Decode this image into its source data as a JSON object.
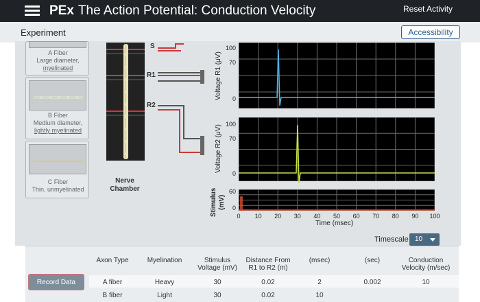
{
  "header": {
    "brand": "PEx",
    "title": "The Action Potential: Conduction Velocity",
    "reset_label": "Reset Activity"
  },
  "subbar": {
    "tab_label": "Experiment",
    "accessibility_label": "Accessibility"
  },
  "fibers": [
    {
      "title": "A Fiber",
      "line1": "Large diameter,",
      "line2": "myelinated"
    },
    {
      "title": "B Fiber",
      "line1": "Medium diameter,",
      "line2": "lightly myelinated"
    },
    {
      "title": "C Fiber",
      "line1": "Thin, unmyelinated",
      "line2": ""
    }
  ],
  "chamber": {
    "label_line1": "Nerve",
    "label_line2": "Chamber",
    "electrodes": [
      "S",
      "R1",
      "R2"
    ]
  },
  "oscilloscope": {
    "r1_label": "Voltage R1 (μV)",
    "r2_label": "Voltage R2 (μV)",
    "stim_label_line1": "Stimulus",
    "stim_label_line2": "(mV)",
    "r1_ticks": [
      "100",
      "70",
      "0"
    ],
    "r2_ticks": [
      "100",
      "70",
      "0"
    ],
    "stim_ticks": [
      "60",
      "0"
    ],
    "x_ticks": [
      "0",
      "10",
      "20",
      "30",
      "40",
      "50",
      "60",
      "70",
      "80",
      "90",
      "100"
    ],
    "x_title": "Time (msec)",
    "r1_color": "#4fb3e8",
    "r2_color": "#c9e04a",
    "stim_color": "#e0502e"
  },
  "timescale": {
    "label": "Timescale",
    "value": "10"
  },
  "table": {
    "record_label": "Record Data",
    "headers": [
      {
        "line1": "Axon Type",
        "line2": ""
      },
      {
        "line1": "Myelination",
        "line2": ""
      },
      {
        "line1": "Stimulus",
        "line2": "Voltage (mV)"
      },
      {
        "line1": "Distance From",
        "line2": "R1 to R2 (m)"
      },
      {
        "line1": "(msec)",
        "line2": ""
      },
      {
        "line1": "(sec)",
        "line2": ""
      },
      {
        "line1": "Conduction",
        "line2": "Velocity (m/sec)"
      }
    ],
    "rows": [
      [
        "A fiber",
        "Heavy",
        "30",
        "0.02",
        "2",
        "0.002",
        "10"
      ],
      [
        "B fiber",
        "Light",
        "30",
        "0.02",
        "10",
        "",
        ""
      ]
    ]
  }
}
